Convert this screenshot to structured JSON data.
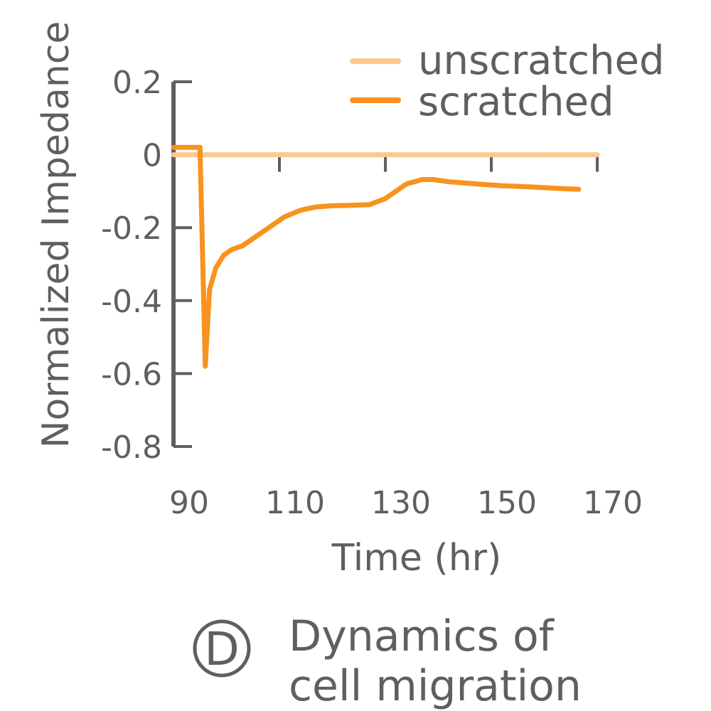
{
  "panel": {
    "letter": "D",
    "caption_line1": "Dynamics of",
    "caption_line2": "cell migration"
  },
  "colors": {
    "axis": "#5f5f5f",
    "unscratched": "#fdc88f",
    "scratched": "#f7931e"
  },
  "chart_data": {
    "type": "line",
    "xlabel": "Time (hr)",
    "ylabel": "Normalized Impedance",
    "xlim": [
      90,
      170
    ],
    "ylim": [
      -0.8,
      0.2
    ],
    "x_ticks": [
      "90",
      "110",
      "130",
      "150",
      "170"
    ],
    "y_ticks": [
      "0.2",
      "0",
      "-0.2",
      "-0.4",
      "-0.6",
      "-0.8"
    ],
    "x_tick_values": [
      90,
      110,
      130,
      150,
      170
    ],
    "y_tick_values": [
      0.2,
      0,
      -0.2,
      -0.4,
      -0.6,
      -0.8
    ],
    "legend_position": "top-right",
    "series": [
      {
        "name": "unscratched",
        "x": [
          90,
          170
        ],
        "y": [
          0.0,
          0.0
        ]
      },
      {
        "name": "scratched",
        "x": [
          90,
          95,
          96,
          96.8,
          98,
          99.5,
          101,
          103,
          104.5,
          108,
          111,
          114,
          117,
          120,
          123,
          127,
          130,
          134,
          137,
          139,
          142,
          147,
          152,
          157,
          162,
          166.5
        ],
        "y": [
          0.02,
          0.02,
          -0.58,
          -0.37,
          -0.31,
          -0.275,
          -0.26,
          -0.25,
          -0.235,
          -0.2,
          -0.17,
          -0.152,
          -0.143,
          -0.14,
          -0.139,
          -0.137,
          -0.12,
          -0.08,
          -0.068,
          -0.068,
          -0.074,
          -0.08,
          -0.085,
          -0.088,
          -0.092,
          -0.095
        ]
      }
    ]
  }
}
